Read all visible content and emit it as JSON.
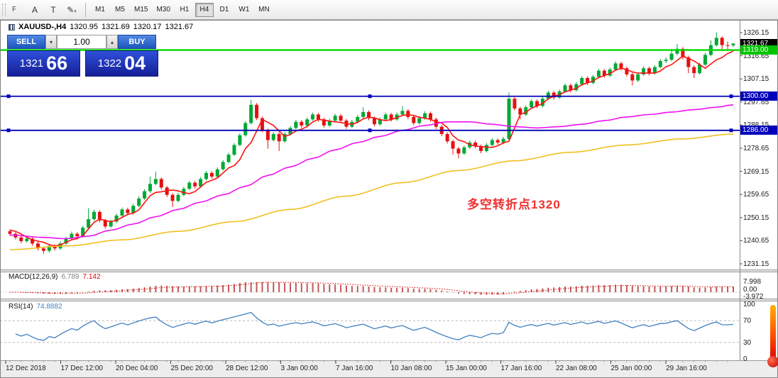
{
  "toolbar": {
    "tools": [
      {
        "name": "font-tool",
        "glyph": "F"
      },
      {
        "name": "annotate-tool",
        "glyph": "A"
      },
      {
        "name": "text-tool",
        "glyph": "T"
      },
      {
        "name": "draw-tool",
        "glyph": "✎"
      },
      {
        "name": "draw-tool-dropdown",
        "glyph": "▾"
      }
    ],
    "timeframes": [
      "M1",
      "M5",
      "M15",
      "M30",
      "H1",
      "H4",
      "D1",
      "W1",
      "MN"
    ],
    "active_timeframe": "H4"
  },
  "chart": {
    "title_symbol": "XAUUSD-,H4",
    "open": "1320.95",
    "high": "1321.69",
    "low": "1320.17",
    "close": "1321.67",
    "annotation": {
      "text": "多空转折点1320",
      "color": "#f03030"
    }
  },
  "trade_panel": {
    "sell_label": "SELL",
    "buy_label": "BUY",
    "volume": "1.00",
    "dropdown_icon": "▾",
    "up_icon": "▴",
    "sell_price": {
      "big": "1321",
      "pips": "66"
    },
    "buy_price": {
      "big": "1322",
      "pips": "04"
    }
  },
  "price_axis": {
    "ticks": [
      1326.15,
      1316.65,
      1307.15,
      1297.65,
      1288.15,
      1278.65,
      1269.15,
      1259.65,
      1250.15,
      1240.65,
      1231.15
    ],
    "badges": [
      {
        "label": "1321.67",
        "price": 1321.67,
        "bg": "#000000",
        "fg": "#ffffff",
        "name": "current-price-badge"
      },
      {
        "label": "1319.00",
        "price": 1319.0,
        "bg": "#00c400",
        "fg": "#ffffff",
        "name": "hline-1319-badge"
      },
      {
        "label": "1300.00",
        "price": 1300.0,
        "bg": "#0202b8",
        "fg": "#ffffff",
        "name": "hline-1300-badge"
      },
      {
        "label": "1286.00",
        "price": 1286.0,
        "bg": "#0202b8",
        "fg": "#ffffff",
        "name": "hline-1286-badge"
      }
    ]
  },
  "indicators": {
    "macd": {
      "label": "MACD(12,26,9)",
      "value_main": "6.789",
      "value_signal": "7.142",
      "scale": [
        "7.998",
        "0.00",
        "-3.972"
      ]
    },
    "rsi": {
      "label": "RSI(14)",
      "value": "74.8882",
      "scale": [
        "100",
        "70",
        "30",
        "0"
      ]
    }
  },
  "time_axis": {
    "labels": [
      "12 Dec 2018",
      "17 Dec 12:00",
      "20 Dec 04:00",
      "25 Dec 20:00",
      "28 Dec 12:00",
      "3 Jan 00:00",
      "7 Jan 16:00",
      "10 Jan 08:00",
      "15 Jan 00:00",
      "17 Jan 16:00",
      "22 Jan 08:00",
      "25 Jan 00:00",
      "29 Jan 16:00"
    ]
  },
  "chart_data": {
    "type": "candlestick",
    "symbol": "XAUUSD-",
    "timeframe": "H4",
    "y_range": [
      1231.15,
      1326.15
    ],
    "candle_colors": {
      "up": "#00a834",
      "down": "#e61010"
    },
    "candles_ohlc": [
      [
        1244.5,
        1245.4,
        1242.6,
        1243.5
      ],
      [
        1243.5,
        1244.2,
        1241.2,
        1242.0
      ],
      [
        1242.0,
        1242.7,
        1239.6,
        1240.5
      ],
      [
        1240.5,
        1242.4,
        1239.8,
        1241.5
      ],
      [
        1241.5,
        1242.1,
        1238.6,
        1239.5
      ],
      [
        1239.5,
        1240.2,
        1236.6,
        1237.5
      ],
      [
        1237.5,
        1238.3,
        1235.3,
        1236.5
      ],
      [
        1236.5,
        1239.3,
        1235.8,
        1238.5
      ],
      [
        1238.5,
        1239.2,
        1236.6,
        1237.5
      ],
      [
        1237.5,
        1240.4,
        1236.9,
        1239.5
      ],
      [
        1239.5,
        1242.3,
        1238.9,
        1241.5
      ],
      [
        1241.5,
        1244.4,
        1240.9,
        1243.5
      ],
      [
        1243.5,
        1244.2,
        1241.7,
        1242.5
      ],
      [
        1242.5,
        1246.8,
        1241.9,
        1246.0
      ],
      [
        1246.0,
        1254.0,
        1245.4,
        1249.5
      ],
      [
        1249.5,
        1253.4,
        1248.9,
        1252.5
      ],
      [
        1252.5,
        1253.2,
        1248.2,
        1249.0
      ],
      [
        1249.0,
        1249.7,
        1245.6,
        1246.5
      ],
      [
        1246.5,
        1249.3,
        1245.9,
        1248.5
      ],
      [
        1248.5,
        1251.8,
        1247.9,
        1251.0
      ],
      [
        1251.0,
        1254.3,
        1250.4,
        1253.5
      ],
      [
        1253.5,
        1254.2,
        1251.1,
        1252.0
      ],
      [
        1252.0,
        1255.8,
        1251.4,
        1255.0
      ],
      [
        1255.0,
        1258.9,
        1254.4,
        1258.0
      ],
      [
        1258.0,
        1261.8,
        1257.4,
        1261.0
      ],
      [
        1261.0,
        1267.0,
        1260.4,
        1264.0
      ],
      [
        1264.0,
        1269.0,
        1263.4,
        1266.0
      ],
      [
        1266.0,
        1266.7,
        1261.6,
        1262.5
      ],
      [
        1262.5,
        1263.2,
        1258.6,
        1259.5
      ],
      [
        1259.5,
        1260.2,
        1254.5,
        1257.0
      ],
      [
        1257.0,
        1260.3,
        1256.4,
        1259.5
      ],
      [
        1259.5,
        1262.8,
        1258.9,
        1262.0
      ],
      [
        1262.0,
        1265.3,
        1261.4,
        1264.5
      ],
      [
        1264.5,
        1265.2,
        1262.1,
        1263.0
      ],
      [
        1263.0,
        1266.8,
        1262.4,
        1266.0
      ],
      [
        1266.0,
        1269.3,
        1265.4,
        1268.5
      ],
      [
        1268.5,
        1269.2,
        1266.1,
        1267.0
      ],
      [
        1267.0,
        1270.8,
        1266.4,
        1270.0
      ],
      [
        1270.0,
        1273.8,
        1269.4,
        1273.0
      ],
      [
        1273.0,
        1276.8,
        1272.4,
        1276.0
      ],
      [
        1276.0,
        1280.8,
        1275.4,
        1280.0
      ],
      [
        1280.0,
        1284.8,
        1279.4,
        1284.0
      ],
      [
        1284.0,
        1289.8,
        1283.4,
        1289.0
      ],
      [
        1289.0,
        1298.5,
        1288.4,
        1296.5
      ],
      [
        1296.5,
        1297.2,
        1290.2,
        1291.0
      ],
      [
        1291.0,
        1291.7,
        1285.2,
        1286.0
      ],
      [
        1286.0,
        1286.7,
        1278.5,
        1282.0
      ],
      [
        1282.0,
        1285.3,
        1281.4,
        1284.5
      ],
      [
        1284.5,
        1285.2,
        1277.5,
        1281.5
      ],
      [
        1281.5,
        1285.3,
        1280.9,
        1284.5
      ],
      [
        1284.5,
        1287.8,
        1283.9,
        1287.0
      ],
      [
        1287.0,
        1290.3,
        1286.4,
        1289.5
      ],
      [
        1289.5,
        1290.2,
        1287.1,
        1288.0
      ],
      [
        1288.0,
        1291.3,
        1287.4,
        1290.5
      ],
      [
        1290.5,
        1293.3,
        1289.9,
        1292.5
      ],
      [
        1292.5,
        1293.2,
        1289.6,
        1290.5
      ],
      [
        1290.5,
        1291.2,
        1287.1,
        1288.0
      ],
      [
        1288.0,
        1290.8,
        1287.4,
        1290.0
      ],
      [
        1290.0,
        1292.8,
        1289.4,
        1292.0
      ],
      [
        1292.0,
        1292.7,
        1289.1,
        1290.0
      ],
      [
        1290.0,
        1290.7,
        1286.6,
        1287.5
      ],
      [
        1287.5,
        1290.3,
        1286.9,
        1289.5
      ],
      [
        1289.5,
        1292.3,
        1288.9,
        1291.5
      ],
      [
        1291.5,
        1295.5,
        1290.9,
        1293.5
      ],
      [
        1293.5,
        1294.2,
        1290.1,
        1291.0
      ],
      [
        1291.0,
        1291.7,
        1287.6,
        1288.5
      ],
      [
        1288.5,
        1291.3,
        1287.9,
        1290.5
      ],
      [
        1290.5,
        1293.3,
        1289.9,
        1292.5
      ],
      [
        1292.5,
        1293.2,
        1289.6,
        1290.5
      ],
      [
        1290.5,
        1293.3,
        1289.9,
        1292.5
      ],
      [
        1292.5,
        1296.0,
        1291.9,
        1294.0
      ],
      [
        1294.0,
        1294.7,
        1290.6,
        1291.5
      ],
      [
        1291.5,
        1292.2,
        1288.1,
        1289.0
      ],
      [
        1289.0,
        1291.8,
        1288.4,
        1291.0
      ],
      [
        1291.0,
        1293.8,
        1290.4,
        1293.0
      ],
      [
        1293.0,
        1293.7,
        1289.6,
        1290.5
      ],
      [
        1290.5,
        1291.2,
        1286.6,
        1287.5
      ],
      [
        1287.5,
        1288.2,
        1283.6,
        1284.5
      ],
      [
        1284.5,
        1285.2,
        1280.6,
        1281.5
      ],
      [
        1281.5,
        1282.2,
        1276.0,
        1278.5
      ],
      [
        1278.5,
        1279.2,
        1274.5,
        1276.5
      ],
      [
        1276.5,
        1279.8,
        1275.9,
        1279.0
      ],
      [
        1279.0,
        1281.8,
        1278.4,
        1281.0
      ],
      [
        1281.0,
        1281.7,
        1278.6,
        1279.5
      ],
      [
        1279.5,
        1280.2,
        1276.6,
        1277.5
      ],
      [
        1277.5,
        1280.8,
        1276.9,
        1280.0
      ],
      [
        1280.0,
        1282.8,
        1279.4,
        1282.0
      ],
      [
        1282.0,
        1282.7,
        1280.1,
        1281.0
      ],
      [
        1281.0,
        1283.3,
        1280.4,
        1282.5
      ],
      [
        1282.5,
        1301.5,
        1281.5,
        1299.0
      ],
      [
        1299.0,
        1299.7,
        1294.1,
        1295.0
      ],
      [
        1295.0,
        1295.7,
        1290.5,
        1292.5
      ],
      [
        1292.5,
        1296.3,
        1291.9,
        1295.5
      ],
      [
        1295.5,
        1298.8,
        1294.9,
        1298.0
      ],
      [
        1298.0,
        1298.7,
        1295.1,
        1296.0
      ],
      [
        1296.0,
        1299.8,
        1295.4,
        1299.0
      ],
      [
        1299.0,
        1302.3,
        1298.4,
        1301.5
      ],
      [
        1301.5,
        1302.2,
        1298.6,
        1299.5
      ],
      [
        1299.5,
        1302.8,
        1298.9,
        1302.0
      ],
      [
        1302.0,
        1305.3,
        1301.4,
        1304.5
      ],
      [
        1304.5,
        1305.2,
        1301.6,
        1302.5
      ],
      [
        1302.5,
        1305.8,
        1301.9,
        1305.0
      ],
      [
        1305.0,
        1308.3,
        1304.4,
        1307.5
      ],
      [
        1307.5,
        1308.2,
        1304.6,
        1305.5
      ],
      [
        1305.5,
        1308.8,
        1304.9,
        1308.0
      ],
      [
        1308.0,
        1311.3,
        1307.4,
        1310.5
      ],
      [
        1310.5,
        1311.2,
        1307.6,
        1308.5
      ],
      [
        1308.5,
        1311.8,
        1307.9,
        1311.0
      ],
      [
        1311.0,
        1314.3,
        1310.4,
        1313.5
      ],
      [
        1313.5,
        1314.2,
        1310.6,
        1311.5
      ],
      [
        1311.5,
        1312.2,
        1308.1,
        1309.0
      ],
      [
        1309.0,
        1309.7,
        1304.5,
        1306.5
      ],
      [
        1306.5,
        1309.8,
        1305.9,
        1309.0
      ],
      [
        1309.0,
        1312.3,
        1308.4,
        1311.5
      ],
      [
        1311.5,
        1312.2,
        1308.6,
        1309.5
      ],
      [
        1309.5,
        1312.8,
        1308.9,
        1312.0
      ],
      [
        1312.0,
        1315.3,
        1311.4,
        1314.5
      ],
      [
        1314.5,
        1316.0,
        1313.6,
        1315.0
      ],
      [
        1315.0,
        1319.5,
        1314.4,
        1317.5
      ],
      [
        1317.5,
        1321.5,
        1316.9,
        1319.5
      ],
      [
        1319.5,
        1320.2,
        1315.1,
        1316.0
      ],
      [
        1316.0,
        1316.7,
        1309.5,
        1312.0
      ],
      [
        1312.0,
        1312.7,
        1307.5,
        1309.5
      ],
      [
        1309.5,
        1313.8,
        1308.9,
        1313.0
      ],
      [
        1313.0,
        1317.8,
        1312.4,
        1317.0
      ],
      [
        1317.0,
        1323.0,
        1316.4,
        1321.0
      ],
      [
        1321.0,
        1326.2,
        1320.4,
        1324.0
      ],
      [
        1324.0,
        1324.7,
        1318.5,
        1321.0
      ],
      [
        1321.0,
        1322.5,
        1319.3,
        1320.95
      ],
      [
        1320.95,
        1321.69,
        1320.17,
        1321.67
      ]
    ],
    "moving_averages": [
      {
        "name": "fast-ma",
        "color": "#ff1010",
        "points": [
          [
            0,
            1245
          ],
          [
            5,
            1240.5
          ],
          [
            8,
            1238.5
          ],
          [
            12,
            1241.5
          ],
          [
            16,
            1249.5
          ],
          [
            18,
            1248.5
          ],
          [
            22,
            1252
          ],
          [
            26,
            1260.5
          ],
          [
            29,
            1261.5
          ],
          [
            32,
            1260
          ],
          [
            36,
            1265.5
          ],
          [
            40,
            1271.5
          ],
          [
            43,
            1281
          ],
          [
            45,
            1290.5
          ],
          [
            47,
            1288
          ],
          [
            49,
            1283.5
          ],
          [
            52,
            1286.5
          ],
          [
            55,
            1290.5
          ],
          [
            58,
            1289.5
          ],
          [
            61,
            1288.5
          ],
          [
            64,
            1291.5
          ],
          [
            67,
            1290
          ],
          [
            71,
            1292.5
          ],
          [
            74,
            1291
          ],
          [
            77,
            1289
          ],
          [
            80,
            1282
          ],
          [
            83,
            1279.5
          ],
          [
            86,
            1279
          ],
          [
            89,
            1281.5
          ],
          [
            91,
            1292.5
          ],
          [
            94,
            1296
          ],
          [
            97,
            1300
          ],
          [
            100,
            1302.5
          ],
          [
            103,
            1305.5
          ],
          [
            106,
            1308.5
          ],
          [
            109,
            1311.5
          ],
          [
            112,
            1309.5
          ],
          [
            115,
            1309.5
          ],
          [
            118,
            1313
          ],
          [
            120,
            1316.5
          ],
          [
            122,
            1314.5
          ],
          [
            124,
            1311.5
          ],
          [
            126,
            1315
          ],
          [
            129,
            1318.5
          ]
        ]
      },
      {
        "name": "medium-ma",
        "color": "#f010f0",
        "points": [
          [
            0,
            1243
          ],
          [
            6,
            1242
          ],
          [
            10,
            1241.5
          ],
          [
            14,
            1242.5
          ],
          [
            18,
            1245
          ],
          [
            22,
            1247.5
          ],
          [
            26,
            1250.5
          ],
          [
            30,
            1253.5
          ],
          [
            34,
            1256.5
          ],
          [
            38,
            1259.5
          ],
          [
            42,
            1263
          ],
          [
            46,
            1267.5
          ],
          [
            50,
            1271
          ],
          [
            54,
            1274.5
          ],
          [
            58,
            1278
          ],
          [
            62,
            1281
          ],
          [
            66,
            1283.5
          ],
          [
            70,
            1286
          ],
          [
            74,
            1288
          ],
          [
            78,
            1289.5
          ],
          [
            82,
            1289.5
          ],
          [
            86,
            1288.5
          ],
          [
            90,
            1287.5
          ],
          [
            94,
            1287
          ],
          [
            98,
            1287.5
          ],
          [
            102,
            1288.5
          ],
          [
            106,
            1290
          ],
          [
            110,
            1291.5
          ],
          [
            114,
            1292.5
          ],
          [
            118,
            1293.5
          ],
          [
            122,
            1294.5
          ],
          [
            126,
            1295.5
          ],
          [
            129,
            1296.5
          ]
        ]
      },
      {
        "name": "slow-ma",
        "color": "#f0c020",
        "points": [
          [
            0,
            1237
          ],
          [
            10,
            1238.5
          ],
          [
            20,
            1241
          ],
          [
            30,
            1244.5
          ],
          [
            40,
            1248.5
          ],
          [
            50,
            1253.5
          ],
          [
            60,
            1259
          ],
          [
            70,
            1264.5
          ],
          [
            80,
            1269.5
          ],
          [
            90,
            1273.5
          ],
          [
            100,
            1277
          ],
          [
            110,
            1280
          ],
          [
            120,
            1282.5
          ],
          [
            129,
            1284.5
          ]
        ]
      }
    ],
    "horizontal_lines": [
      {
        "price": 1319.0,
        "color": "#00d800",
        "width": 2.4,
        "handles": false
      },
      {
        "price": 1300.0,
        "color": "#0202b8",
        "width": 1.8,
        "handles": true
      },
      {
        "price": 1286.0,
        "color": "#0202b8",
        "width": 1.8,
        "handles": true
      }
    ],
    "sub_indicators": {
      "macd": {
        "fast": 12,
        "slow": 26,
        "signal": 9,
        "histogram_color": "#c25858",
        "signal_color": "#e00000",
        "current": [
          6.789,
          7.142
        ],
        "visible_range": [
          -3.972,
          7.998
        ]
      },
      "rsi": {
        "period": 14,
        "color": "#4080c0",
        "levels": [
          70,
          30
        ],
        "current": 74.8882
      }
    }
  }
}
